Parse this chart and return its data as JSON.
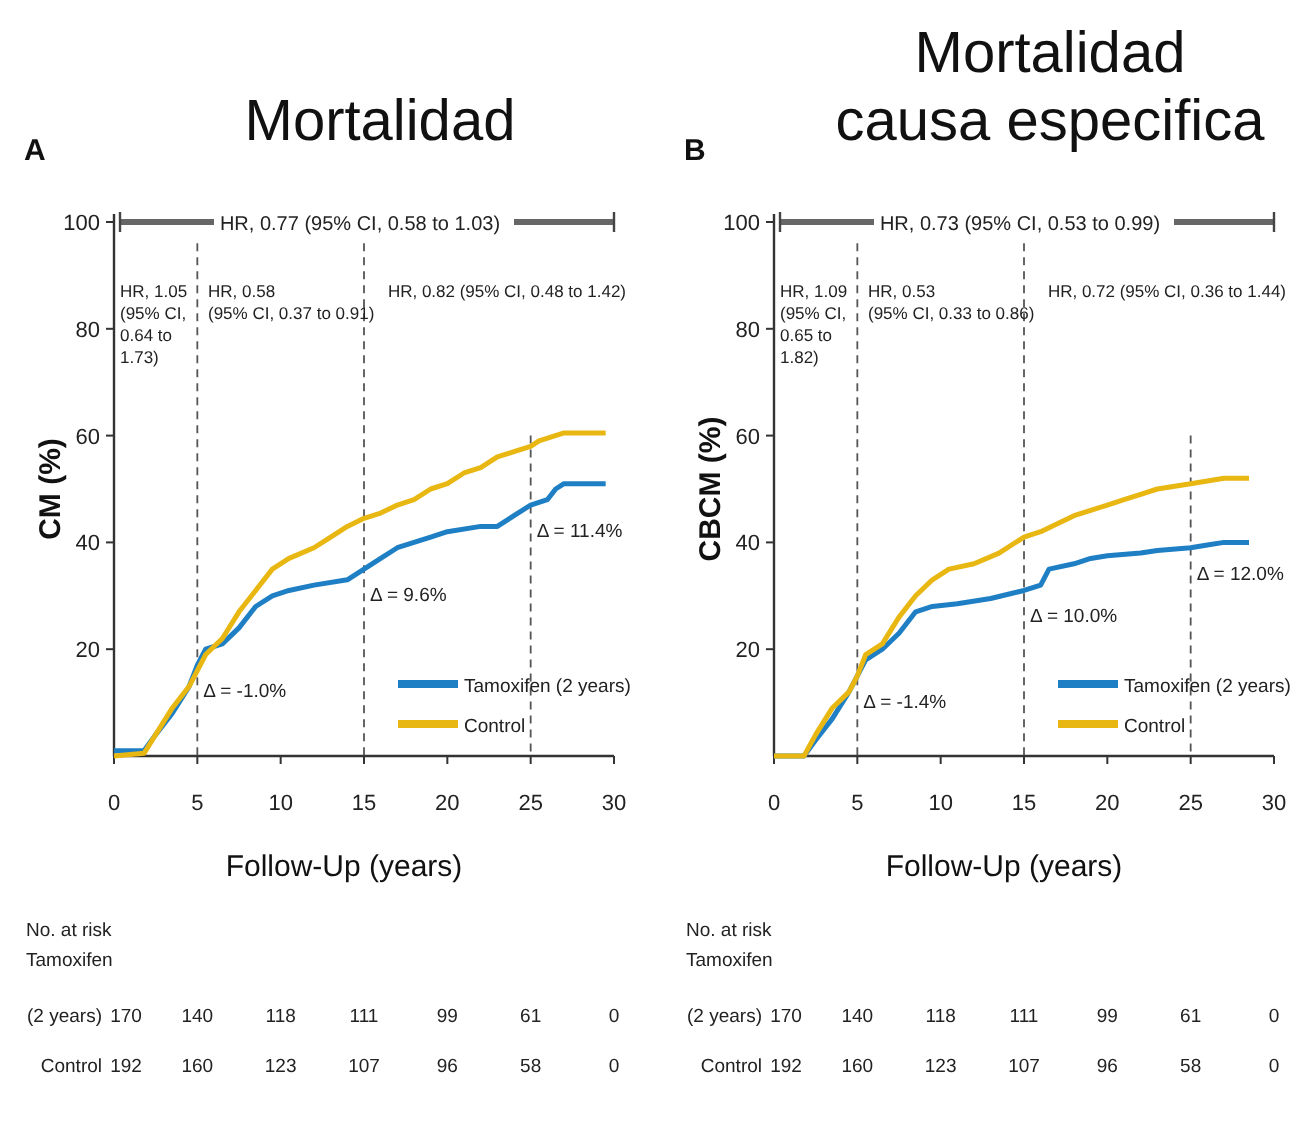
{
  "chart_data": [
    {
      "type": "line",
      "title": "Mortalidad",
      "subtitle": "A",
      "xlabel": "Follow-Up (years)",
      "ylabel": "CM (%)",
      "xlim": [
        0,
        30
      ],
      "xticks": [
        0,
        5,
        10,
        15,
        20,
        25,
        30
      ],
      "ylim": [
        0,
        100
      ],
      "yticks": [
        20,
        40,
        60,
        80,
        100
      ],
      "grid": false,
      "legend": "bottom right",
      "marker": "none",
      "line_style": "solid",
      "series": [
        {
          "name": "Tamoxifen (2 years)",
          "color": "#1f7fc4",
          "x": [
            0,
            1.8,
            2.5,
            3.5,
            4.5,
            5,
            5.5,
            6.5,
            7.5,
            8.5,
            9.5,
            10.5,
            12,
            14,
            15,
            16,
            17,
            18,
            19,
            20,
            22,
            23,
            24,
            25,
            26,
            26.5,
            27,
            29.5
          ],
          "values": [
            1,
            1,
            4,
            8,
            13,
            17,
            20,
            21,
            24,
            28,
            30,
            31,
            32,
            33,
            35,
            37,
            39,
            40,
            41,
            42,
            43,
            43,
            45,
            47,
            48,
            50,
            51,
            51
          ]
        },
        {
          "name": "Control",
          "color": "#e8b712",
          "x": [
            0,
            1.8,
            2.5,
            3.5,
            4.5,
            5,
            5.5,
            6.5,
            7.5,
            8.5,
            9.5,
            10.5,
            12,
            13,
            14,
            15,
            16,
            17,
            18,
            19,
            20,
            21,
            22,
            23,
            24,
            25,
            25.5,
            27,
            29.5
          ],
          "values": [
            0,
            0.5,
            4,
            9,
            13,
            16,
            19,
            22,
            27,
            31,
            35,
            37,
            39,
            41,
            43,
            44.5,
            45.5,
            47,
            48,
            50,
            51,
            53,
            54,
            56,
            57,
            58,
            59,
            60.5,
            60.5
          ]
        }
      ],
      "ref_lines": [
        {
          "axis": "x",
          "value": 5,
          "line_style": "dashed"
        },
        {
          "axis": "x",
          "value": 15,
          "line_style": "dashed"
        },
        {
          "axis": "x",
          "value": 25,
          "line_style": "dashed"
        }
      ],
      "annotations": [
        "HR, 0.77 (95% CI, 0.58 to 1.03)",
        "HR, 1.05\n(95% CI,\n0.64 to\n1.73)",
        "HR, 0.58\n(95% CI, 0.37 to 0.91)",
        "HR, 0.82 (95% CI, 0.48 to 1.42)",
        {
          "text": "Δ = -1.0%",
          "x": 5,
          "y": 17
        },
        {
          "text": "Δ = 9.6%",
          "x": 15,
          "y": 35
        },
        {
          "text": "Δ = 11.4%",
          "x": 25,
          "y": 47
        },
        "No. at risk\nTamoxifen",
        "(2 years)",
        "170",
        "140",
        "118",
        "111",
        "99",
        "61",
        "0",
        "Control",
        "192",
        "160",
        "123",
        "107",
        "96",
        "58",
        "0"
      ]
    },
    {
      "type": "line",
      "title": "Mortalidad\ncausa especifica",
      "subtitle": "B",
      "xlabel": "Follow-Up (years)",
      "ylabel": "CBCM (%)",
      "xlim": [
        0,
        30
      ],
      "xticks": [
        0,
        5,
        10,
        15,
        20,
        25,
        30
      ],
      "ylim": [
        0,
        100
      ],
      "yticks": [
        20,
        40,
        60,
        80,
        100
      ],
      "grid": false,
      "legend": "bottom right",
      "marker": "none",
      "line_style": "solid",
      "series": [
        {
          "name": "Tamoxifen (2 years)",
          "color": "#1f7fc4",
          "x": [
            0,
            1.8,
            2.5,
            3.5,
            4.5,
            5,
            5.5,
            6.5,
            7.5,
            8.5,
            9.5,
            11,
            13,
            15,
            16,
            16.5,
            18,
            19,
            20,
            22,
            23,
            25,
            26,
            27,
            28.5
          ],
          "values": [
            0,
            0,
            3,
            7,
            12,
            15,
            18,
            20,
            23,
            27,
            28,
            28.5,
            29.5,
            31,
            32,
            35,
            36,
            37,
            37.5,
            38,
            38.5,
            39,
            39.5,
            40,
            40
          ]
        },
        {
          "name": "Control",
          "color": "#e8b712",
          "x": [
            0,
            1.8,
            2.5,
            3.5,
            4.5,
            5,
            5.5,
            6.5,
            7.5,
            8.5,
            9.5,
            10.5,
            12,
            13.5,
            15,
            16,
            17,
            18,
            19,
            20,
            21,
            22,
            23,
            25,
            27,
            28.5
          ],
          "values": [
            0,
            0,
            4,
            9,
            12,
            15,
            19,
            21,
            26,
            30,
            33,
            35,
            36,
            38,
            41,
            42,
            43.5,
            45,
            46,
            47,
            48,
            49,
            50,
            51,
            52,
            52
          ]
        }
      ],
      "ref_lines": [
        {
          "axis": "x",
          "value": 5,
          "line_style": "dashed"
        },
        {
          "axis": "x",
          "value": 15,
          "line_style": "dashed"
        },
        {
          "axis": "x",
          "value": 25,
          "line_style": "dashed"
        }
      ],
      "annotations": [
        "HR, 0.73 (95% CI, 0.53 to 0.99)",
        "HR, 1.09\n(95% CI,\n0.65 to\n1.82)",
        "HR, 0.53\n(95% CI, 0.33 to 0.86)",
        "HR, 0.72 (95% CI, 0.36 to 1.44)",
        {
          "text": "Δ = -1.4%",
          "x": 5,
          "y": 15
        },
        {
          "text": "Δ = 10.0%",
          "x": 15,
          "y": 31
        },
        {
          "text": "Δ = 12.0%",
          "x": 25,
          "y": 39
        },
        "No. at risk\nTamoxifen",
        "(2 years)",
        "170",
        "140",
        "118",
        "111",
        "99",
        "61",
        "0",
        "Control",
        "192",
        "160",
        "123",
        "107",
        "96",
        "58",
        "0"
      ]
    }
  ]
}
